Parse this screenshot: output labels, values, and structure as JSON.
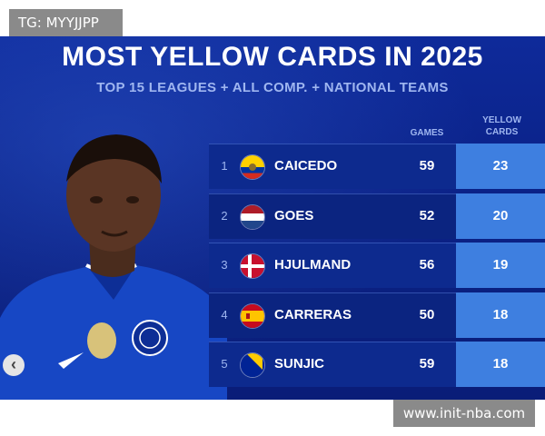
{
  "watermark_top": "TG: MYYJJPP",
  "watermark_bottom": "www.init-nba.com",
  "graphic": {
    "title": "MOST YELLOW CARDS IN 2025",
    "subtitle": "TOP 15 LEAGUES + ALL COMP. + NATIONAL TEAMS",
    "columns": {
      "games": "GAMES",
      "yellow_cards": "YELLOW CARDS"
    },
    "rows": [
      {
        "rank": "1",
        "name": "CAICEDO",
        "flag": "ecuador-flag-icon",
        "games": "59",
        "cards": "23"
      },
      {
        "rank": "2",
        "name": "GOES",
        "flag": "netherlands-flag-icon",
        "games": "52",
        "cards": "20"
      },
      {
        "rank": "3",
        "name": "HJULMAND",
        "flag": "denmark-flag-icon",
        "games": "56",
        "cards": "19"
      },
      {
        "rank": "4",
        "name": "CARRERAS",
        "flag": "spain-flag-icon",
        "games": "50",
        "cards": "18"
      },
      {
        "rank": "5",
        "name": "SUNJIC",
        "flag": "bosnia-flag-icon",
        "games": "59",
        "cards": "18"
      }
    ]
  },
  "prev_icon": "chevron-left-icon",
  "colors": {
    "background": "#0b2288",
    "cards_column": "#3e7fe0",
    "subtitle": "#9fb6f0"
  }
}
